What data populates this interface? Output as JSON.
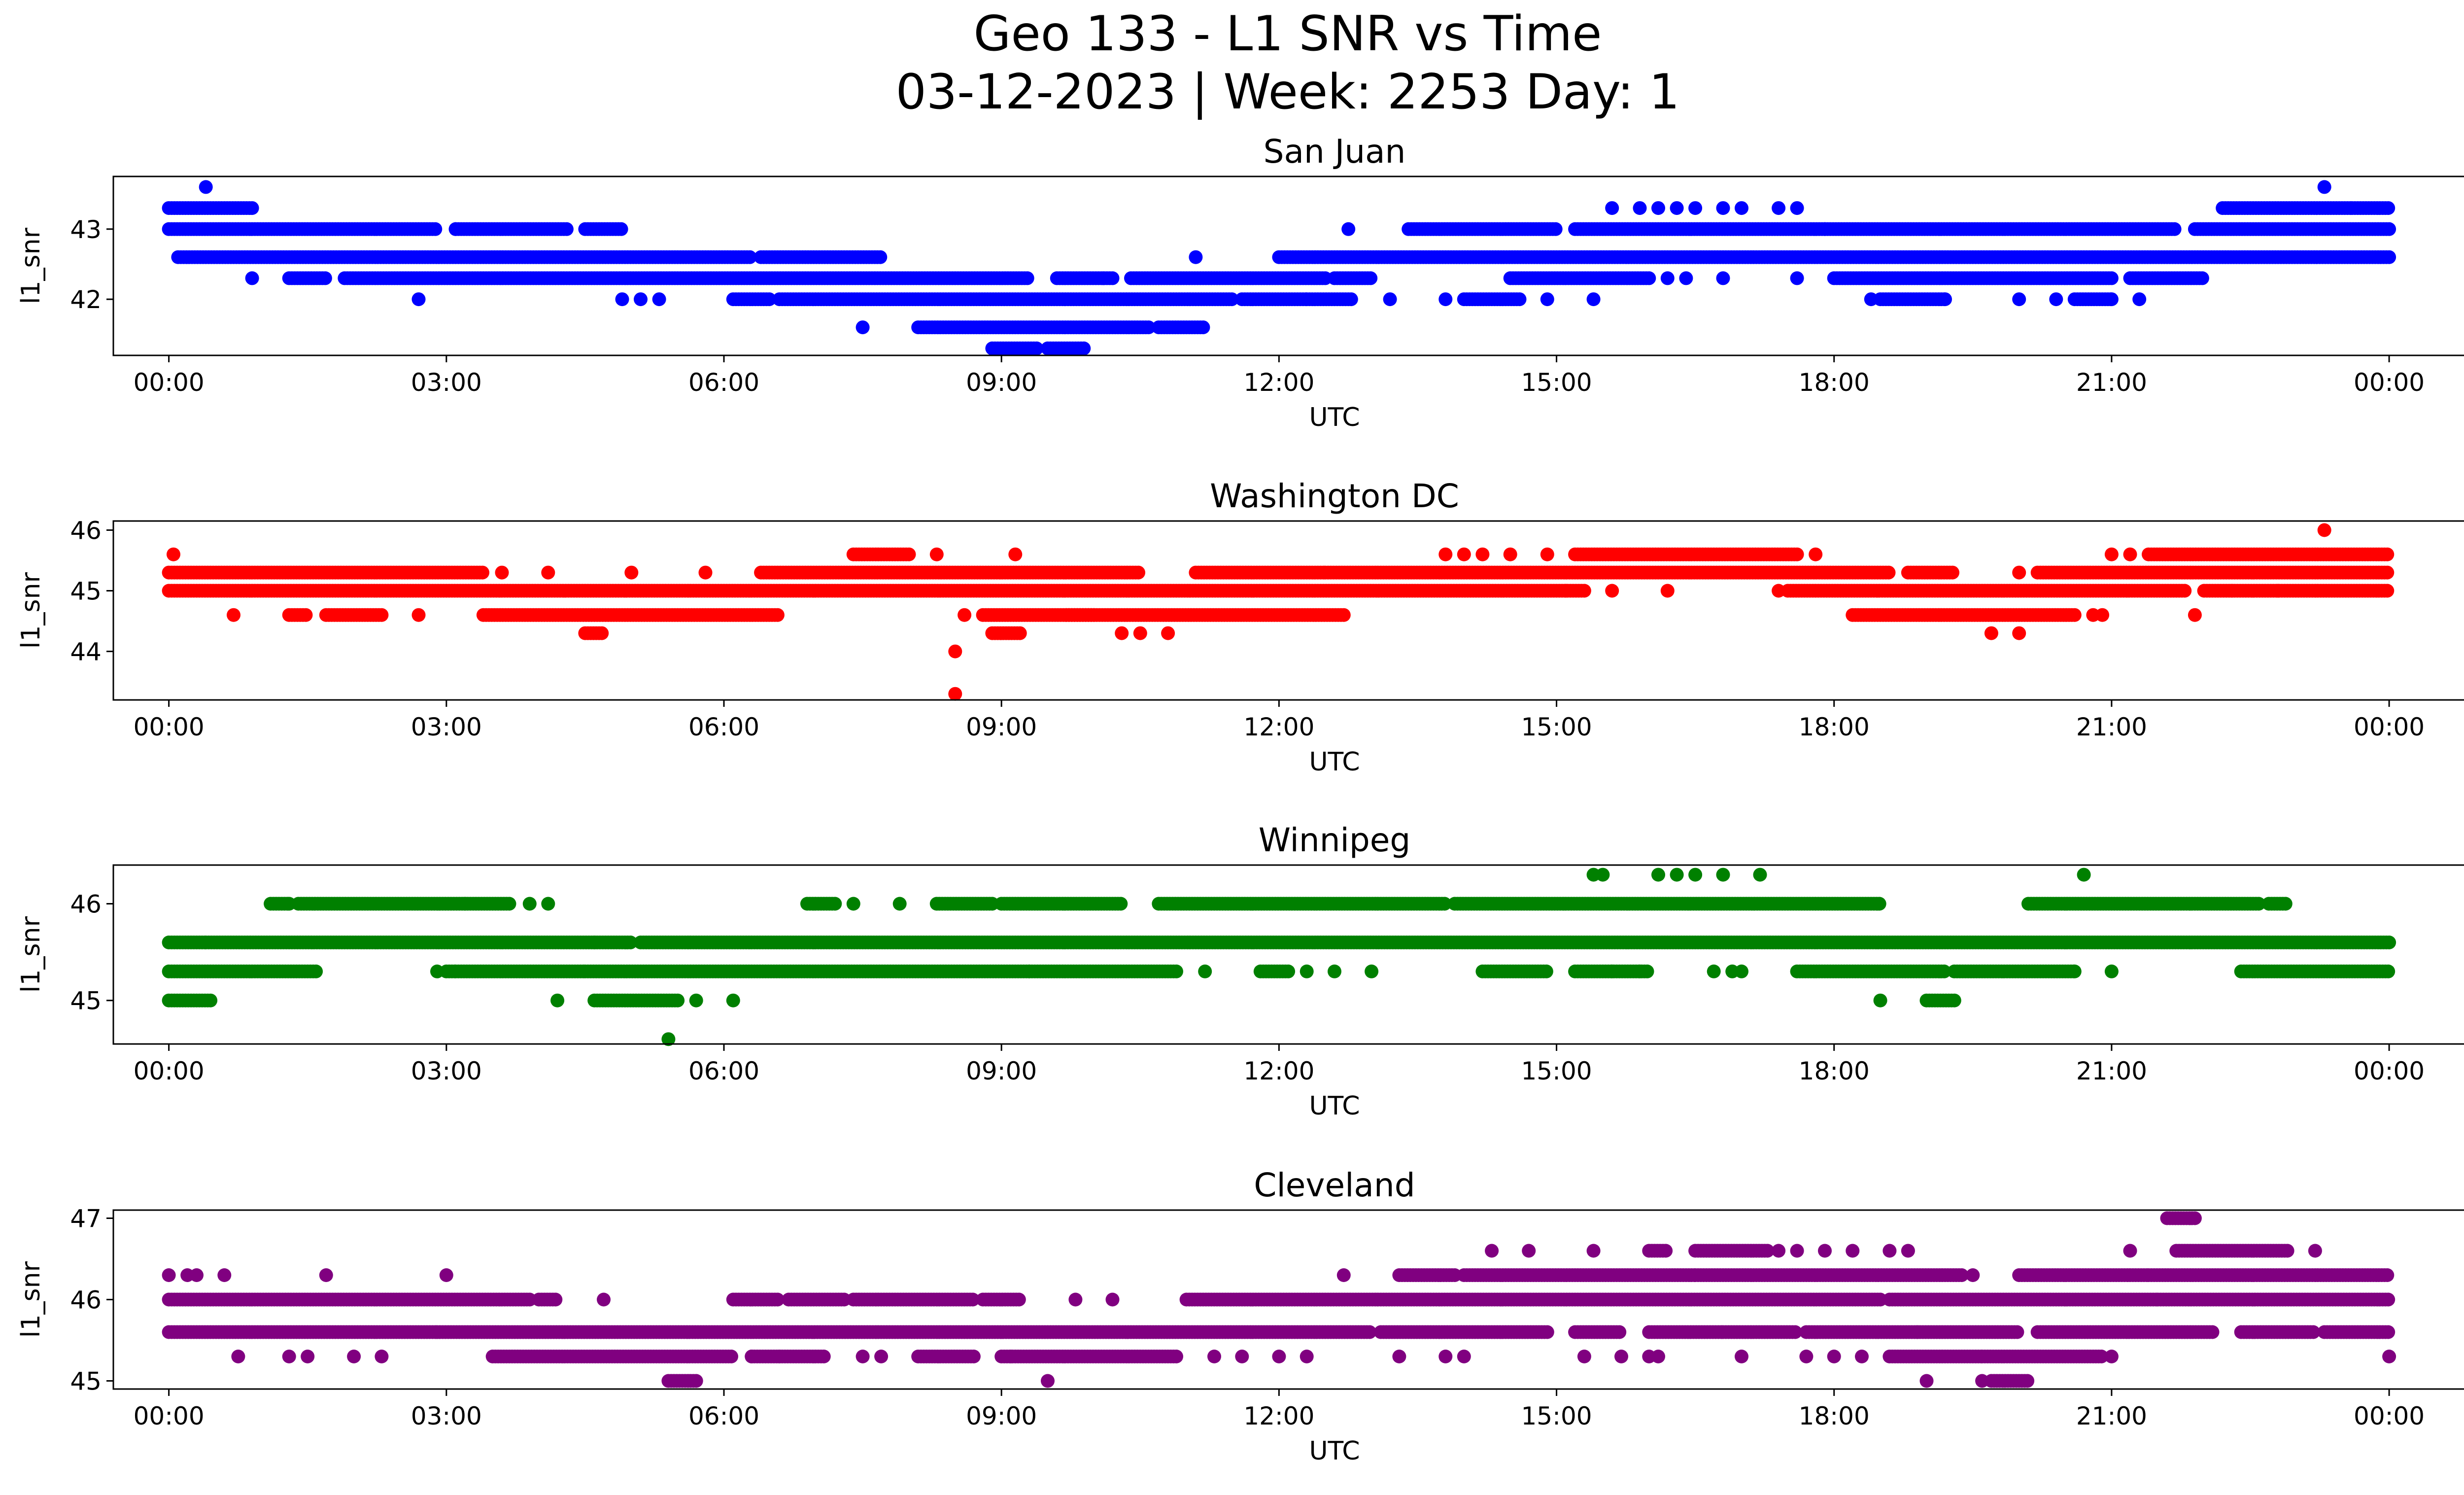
{
  "figure": {
    "title_line1": "Geo 133 - L1 SNR vs Time",
    "title_line2": "03-12-2023 | Week: 2253 Day: 1"
  },
  "chart_data": [
    {
      "type": "scatter",
      "title": "San Juan",
      "xlabel": "UTC",
      "ylabel": "l1_snr",
      "color": "#0000ff",
      "xlim": [
        -0.6,
        25.8
      ],
      "ylim": [
        41.2,
        43.75
      ],
      "xticks": [
        "00:00",
        "03:00",
        "06:00",
        "09:00",
        "12:00",
        "15:00",
        "18:00",
        "21:00",
        "00:00"
      ],
      "yticks": [
        42,
        43
      ],
      "bands": [
        {
          "y": 43.3,
          "ranges": [
            [
              0.0,
              0.9
            ],
            [
              22.2,
              23.6
            ],
            [
              23.6,
              24.0
            ]
          ]
        },
        {
          "y": 43.0,
          "ranges": [
            [
              0.0,
              2.9
            ],
            [
              3.1,
              4.3
            ],
            [
              4.5,
              4.9
            ],
            [
              13.4,
              15.0
            ],
            [
              15.2,
              21.7
            ],
            [
              21.9,
              24.0
            ]
          ]
        },
        {
          "y": 42.6,
          "ranges": [
            [
              0.1,
              6.3
            ],
            [
              6.4,
              7.7
            ],
            [
              12.0,
              24.0
            ]
          ]
        },
        {
          "y": 42.3,
          "ranges": [
            [
              1.3,
              1.7
            ],
            [
              1.9,
              9.3
            ],
            [
              9.6,
              10.2
            ],
            [
              10.4,
              12.5
            ],
            [
              12.6,
              13.0
            ],
            [
              14.5,
              16.0
            ],
            [
              18.0,
              21.0
            ],
            [
              21.2,
              22.0
            ]
          ]
        },
        {
          "y": 42.0,
          "ranges": [
            [
              6.1,
              6.5
            ],
            [
              6.6,
              11.5
            ],
            [
              11.6,
              12.3
            ],
            [
              12.3,
              12.8
            ],
            [
              14.0,
              14.6
            ],
            [
              18.5,
              19.2
            ],
            [
              20.6,
              21.0
            ]
          ]
        },
        {
          "y": 41.6,
          "ranges": [
            [
              8.1,
              10.6
            ],
            [
              10.7,
              11.2
            ]
          ]
        },
        {
          "y": 41.3,
          "ranges": [
            [
              8.9,
              9.4
            ],
            [
              9.5,
              9.9
            ]
          ]
        }
      ],
      "points": [
        [
          0.4,
          43.6
        ],
        [
          23.3,
          43.6
        ],
        [
          0.9,
          42.3
        ],
        [
          2.7,
          42.0
        ],
        [
          3.1,
          43.0
        ],
        [
          11.1,
          42.6
        ],
        [
          12.75,
          43.0
        ],
        [
          10.1,
          42.3
        ],
        [
          7.5,
          41.6
        ],
        [
          4.9,
          42.0
        ],
        [
          5.1,
          42.0
        ],
        [
          5.3,
          42.0
        ],
        [
          13.2,
          42.0
        ],
        [
          13.8,
          42.0
        ],
        [
          14.9,
          42.0
        ],
        [
          15.6,
          43.3
        ],
        [
          15.9,
          43.3
        ],
        [
          16.1,
          43.3
        ],
        [
          16.3,
          43.3
        ],
        [
          16.5,
          43.3
        ],
        [
          16.8,
          43.3
        ],
        [
          17.0,
          43.3
        ],
        [
          17.4,
          43.3
        ],
        [
          17.6,
          43.3
        ],
        [
          16.8,
          42.3
        ],
        [
          17.6,
          42.3
        ],
        [
          17.9,
          43.0
        ],
        [
          18.4,
          42.0
        ],
        [
          19.2,
          42.0
        ],
        [
          20.0,
          42.0
        ],
        [
          20.4,
          42.0
        ],
        [
          21.0,
          42.0
        ],
        [
          21.3,
          42.0
        ],
        [
          16.2,
          42.3
        ],
        [
          16.4,
          42.3
        ],
        [
          15.4,
          42.0
        ]
      ]
    },
    {
      "type": "scatter",
      "title": "Washington DC",
      "xlabel": "UTC",
      "ylabel": "l1_snr",
      "color": "#ff0000",
      "xlim": [
        -0.6,
        25.8
      ],
      "ylim": [
        43.2,
        46.15
      ],
      "xticks": [
        "00:00",
        "03:00",
        "06:00",
        "09:00",
        "12:00",
        "15:00",
        "18:00",
        "21:00",
        "00:00"
      ],
      "yticks": [
        44,
        45,
        46
      ],
      "bands": [
        {
          "y": 45.6,
          "ranges": [
            [
              7.4,
              8.0
            ],
            [
              15.2,
              17.6
            ],
            [
              21.4,
              24.0
            ]
          ]
        },
        {
          "y": 45.3,
          "ranges": [
            [
              0.0,
              3.4
            ],
            [
              6.4,
              10.5
            ],
            [
              11.1,
              12.5
            ],
            [
              12.5,
              18.6
            ],
            [
              18.8,
              19.3
            ],
            [
              20.2,
              24.0
            ]
          ]
        },
        {
          "y": 45.0,
          "ranges": [
            [
              0.0,
              15.3
            ],
            [
              17.5,
              21.8
            ],
            [
              22.0,
              24.0
            ]
          ]
        },
        {
          "y": 44.6,
          "ranges": [
            [
              1.3,
              1.5
            ],
            [
              1.7,
              2.3
            ],
            [
              3.4,
              6.6
            ],
            [
              8.8,
              10.0
            ],
            [
              9.7,
              12.7
            ],
            [
              18.2,
              20.6
            ]
          ]
        },
        {
          "y": 44.3,
          "ranges": [
            [
              4.5,
              4.7
            ],
            [
              8.9,
              9.2
            ]
          ]
        }
      ],
      "points": [
        [
          0.05,
          45.6
        ],
        [
          0.7,
          44.6
        ],
        [
          2.7,
          44.6
        ],
        [
          3.6,
          45.3
        ],
        [
          4.1,
          45.3
        ],
        [
          5.0,
          45.3
        ],
        [
          5.8,
          45.3
        ],
        [
          8.3,
          45.6
        ],
        [
          9.15,
          45.6
        ],
        [
          8.5,
          44.0
        ],
        [
          8.5,
          43.3
        ],
        [
          8.6,
          44.6
        ],
        [
          10.3,
          44.3
        ],
        [
          10.5,
          44.3
        ],
        [
          10.8,
          44.3
        ],
        [
          14.0,
          45.6
        ],
        [
          14.2,
          45.6
        ],
        [
          14.5,
          45.6
        ],
        [
          14.9,
          45.6
        ],
        [
          15.1,
          45.0
        ],
        [
          15.6,
          45.0
        ],
        [
          16.2,
          45.0
        ],
        [
          17.4,
          45.0
        ],
        [
          17.8,
          45.6
        ],
        [
          19.7,
          44.3
        ],
        [
          20.0,
          44.3
        ],
        [
          20.0,
          45.3
        ],
        [
          20.8,
          44.6
        ],
        [
          20.9,
          44.6
        ],
        [
          21.9,
          44.6
        ],
        [
          23.3,
          46.0
        ],
        [
          22.3,
          45.0
        ],
        [
          22.8,
          45.0
        ],
        [
          21.0,
          45.6
        ],
        [
          21.2,
          45.6
        ],
        [
          13.8,
          45.6
        ]
      ]
    },
    {
      "type": "scatter",
      "title": "Winnipeg",
      "xlabel": "UTC",
      "ylabel": "l1_snr",
      "color": "#008000",
      "xlim": [
        -0.6,
        25.8
      ],
      "ylim": [
        44.55,
        46.4
      ],
      "xticks": [
        "00:00",
        "03:00",
        "06:00",
        "09:00",
        "12:00",
        "15:00",
        "18:00",
        "21:00",
        "00:00"
      ],
      "yticks": [
        45,
        46
      ],
      "bands": [
        {
          "y": 46.0,
          "ranges": [
            [
              1.1,
              1.3
            ],
            [
              1.4,
              3.2
            ],
            [
              3.2,
              3.7
            ],
            [
              6.9,
              7.2
            ],
            [
              8.3,
              8.9
            ],
            [
              9.0,
              10.3
            ],
            [
              10.7,
              13.8
            ],
            [
              13.9,
              18.5
            ],
            [
              20.1,
              22.6
            ],
            [
              22.7,
              22.9
            ]
          ]
        },
        {
          "y": 45.6,
          "ranges": [
            [
              0.0,
              0.4
            ],
            [
              0.4,
              4.6
            ],
            [
              4.6,
              5.0
            ],
            [
              5.1,
              24.0
            ]
          ]
        },
        {
          "y": 45.3,
          "ranges": [
            [
              0.0,
              1.6
            ],
            [
              3.0,
              3.1
            ],
            [
              3.1,
              4.5
            ],
            [
              4.5,
              9.3
            ],
            [
              9.3,
              10.9
            ],
            [
              11.8,
              12.1
            ],
            [
              14.2,
              14.9
            ],
            [
              15.2,
              16.0
            ],
            [
              17.6,
              19.2
            ],
            [
              19.3,
              20.6
            ],
            [
              22.4,
              24.0
            ]
          ]
        },
        {
          "y": 45.0,
          "ranges": [
            [
              0.0,
              0.45
            ],
            [
              4.6,
              5.5
            ],
            [
              19.0,
              19.3
            ]
          ]
        }
      ],
      "points": [
        [
          1.3,
          46.0
        ],
        [
          3.9,
          46.0
        ],
        [
          4.1,
          46.0
        ],
        [
          7.4,
          46.0
        ],
        [
          7.9,
          46.0
        ],
        [
          11.2,
          45.3
        ],
        [
          2.9,
          45.3
        ],
        [
          4.2,
          45.0
        ],
        [
          5.7,
          45.0
        ],
        [
          6.1,
          45.0
        ],
        [
          5.4,
          44.6
        ],
        [
          15.4,
          46.3
        ],
        [
          15.5,
          46.3
        ],
        [
          16.1,
          46.3
        ],
        [
          16.3,
          46.3
        ],
        [
          16.5,
          46.3
        ],
        [
          16.8,
          46.3
        ],
        [
          17.2,
          46.3
        ],
        [
          20.7,
          46.3
        ],
        [
          15.6,
          45.3
        ],
        [
          15.9,
          45.3
        ],
        [
          16.7,
          45.3
        ],
        [
          16.9,
          45.3
        ],
        [
          17.0,
          45.3
        ],
        [
          18.5,
          45.0
        ],
        [
          21.0,
          45.3
        ],
        [
          20.6,
          45.3
        ],
        [
          12.3,
          45.3
        ],
        [
          12.6,
          45.3
        ],
        [
          13.0,
          45.3
        ]
      ]
    },
    {
      "type": "scatter",
      "title": "Cleveland",
      "xlabel": "UTC",
      "ylabel": "l1_snr",
      "color": "#800080",
      "xlim": [
        -0.6,
        25.8
      ],
      "ylim": [
        44.9,
        47.1
      ],
      "xticks": [
        "00:00",
        "03:00",
        "06:00",
        "09:00",
        "12:00",
        "15:00",
        "18:00",
        "21:00",
        "00:00"
      ],
      "yticks": [
        45,
        46,
        47
      ],
      "bands": [
        {
          "y": 47.0,
          "ranges": [
            [
              21.6,
              21.9
            ]
          ]
        },
        {
          "y": 46.6,
          "ranges": [
            [
              16.0,
              16.2
            ],
            [
              16.5,
              17.3
            ],
            [
              21.7,
              22.9
            ]
          ]
        },
        {
          "y": 46.3,
          "ranges": [
            [
              13.3,
              13.9
            ],
            [
              14.0,
              16.5
            ],
            [
              16.5,
              19.4
            ],
            [
              20.0,
              21.4
            ],
            [
              21.4,
              24.0
            ]
          ]
        },
        {
          "y": 46.0,
          "ranges": [
            [
              0.0,
              3.9
            ],
            [
              4.0,
              4.2
            ],
            [
              6.1,
              6.6
            ],
            [
              6.7,
              7.3
            ],
            [
              7.4,
              8.7
            ],
            [
              8.8,
              9.2
            ],
            [
              11.0,
              18.5
            ],
            [
              18.6,
              21.5
            ],
            [
              21.5,
              24.0
            ]
          ]
        },
        {
          "y": 45.6,
          "ranges": [
            [
              0.0,
              2.9
            ],
            [
              2.9,
              13.0
            ],
            [
              13.1,
              14.9
            ],
            [
              15.2,
              15.7
            ],
            [
              16.0,
              16.8
            ],
            [
              16.8,
              17.6
            ],
            [
              17.7,
              18.9
            ],
            [
              18.9,
              20.0
            ],
            [
              20.2,
              22.1
            ],
            [
              22.4,
              23.2
            ],
            [
              23.3,
              24.0
            ]
          ]
        },
        {
          "y": 45.3,
          "ranges": [
            [
              3.5,
              6.1
            ],
            [
              6.3,
              7.1
            ],
            [
              8.1,
              8.7
            ],
            [
              9.0,
              10.9
            ],
            [
              18.6,
              19.6
            ],
            [
              19.6,
              20.9
            ]
          ]
        },
        {
          "y": 45.0,
          "ranges": [
            [
              5.4,
              5.7
            ],
            [
              19.7,
              20.1
            ]
          ]
        }
      ],
      "points": [
        [
          0.0,
          46.3
        ],
        [
          0.2,
          46.3
        ],
        [
          0.3,
          46.3
        ],
        [
          0.6,
          46.3
        ],
        [
          1.7,
          46.3
        ],
        [
          3.0,
          46.3
        ],
        [
          0.75,
          45.3
        ],
        [
          1.3,
          45.3
        ],
        [
          1.5,
          45.3
        ],
        [
          2.0,
          45.3
        ],
        [
          2.3,
          45.3
        ],
        [
          4.7,
          46.0
        ],
        [
          6.3,
          45.3
        ],
        [
          6.6,
          45.3
        ],
        [
          7.5,
          45.3
        ],
        [
          7.7,
          45.3
        ],
        [
          9.1,
          45.3
        ],
        [
          9.5,
          45.0
        ],
        [
          9.8,
          46.0
        ],
        [
          10.2,
          46.0
        ],
        [
          11.3,
          45.3
        ],
        [
          11.6,
          45.3
        ],
        [
          12.0,
          45.3
        ],
        [
          12.3,
          45.3
        ],
        [
          12.7,
          46.3
        ],
        [
          13.3,
          45.3
        ],
        [
          13.8,
          45.3
        ],
        [
          14.0,
          45.3
        ],
        [
          14.7,
          46.6
        ],
        [
          15.4,
          46.6
        ],
        [
          15.7,
          45.3
        ],
        [
          16.0,
          45.3
        ],
        [
          17.4,
          46.6
        ],
        [
          17.6,
          46.6
        ],
        [
          17.9,
          46.6
        ],
        [
          18.2,
          46.6
        ],
        [
          18.6,
          46.6
        ],
        [
          18.8,
          46.6
        ],
        [
          17.0,
          45.3
        ],
        [
          17.7,
          45.3
        ],
        [
          18.0,
          45.3
        ],
        [
          18.3,
          45.3
        ],
        [
          19.0,
          45.0
        ],
        [
          19.6,
          45.0
        ],
        [
          19.5,
          46.3
        ],
        [
          21.2,
          46.6
        ],
        [
          21.0,
          45.3
        ],
        [
          23.2,
          46.6
        ],
        [
          24.0,
          45.3
        ],
        [
          16.1,
          45.3
        ],
        [
          15.3,
          45.3
        ],
        [
          14.3,
          46.6
        ]
      ]
    }
  ]
}
